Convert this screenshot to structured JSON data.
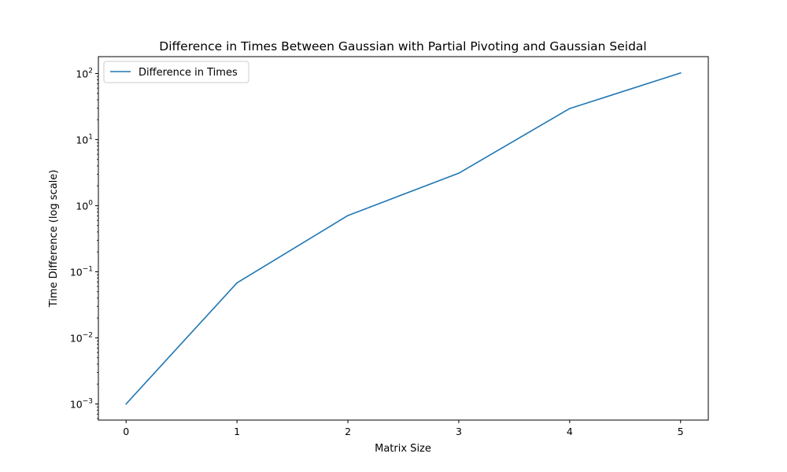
{
  "chart_data": {
    "type": "line",
    "title": "Difference in Times Between Gaussian with Partial Pivoting and Gaussian Seidal",
    "xlabel": "Matrix Size",
    "ylabel": "Time Difference (log scale)",
    "yscale": "log",
    "x_ticks": [
      "0",
      "1",
      "2",
      "3",
      "4",
      "5"
    ],
    "y_ticks": [
      {
        "value": 0.001,
        "base": "10",
        "exp": "−3"
      },
      {
        "value": 0.01,
        "base": "10",
        "exp": "−2"
      },
      {
        "value": 0.1,
        "base": "10",
        "exp": "−1"
      },
      {
        "value": 1,
        "base": "10",
        "exp": "0"
      },
      {
        "value": 10,
        "base": "10",
        "exp": "1"
      },
      {
        "value": 100,
        "base": "10",
        "exp": "2"
      }
    ],
    "xlim": [
      -0.25,
      5.25
    ],
    "ylim": [
      0.00057,
      180
    ],
    "grid": false,
    "legend_position": "top-left",
    "series": [
      {
        "name": "Difference in Times",
        "color": "#1f77b4",
        "x": [
          0,
          1,
          2,
          3,
          4,
          5
        ],
        "y": [
          0.001,
          0.068,
          0.71,
          3.1,
          29.5,
          102
        ]
      }
    ]
  }
}
